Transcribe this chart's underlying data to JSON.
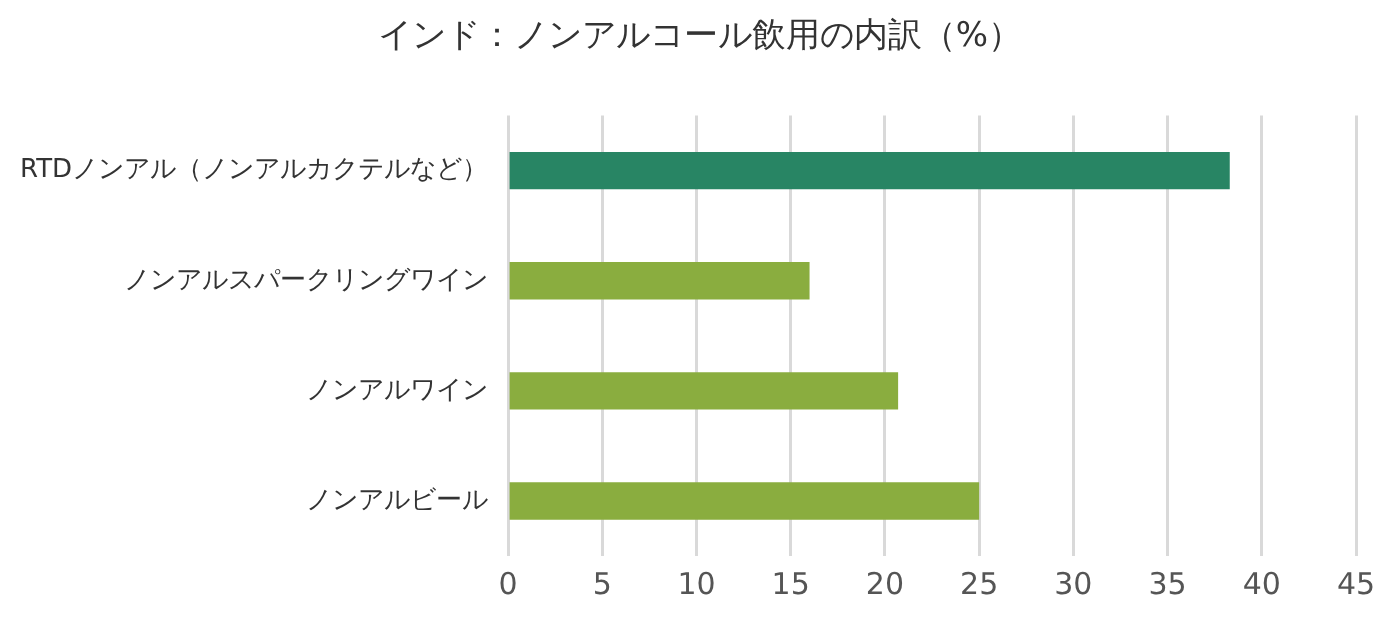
{
  "chart_data": {
    "type": "bar",
    "orientation": "horizontal",
    "title": "インド：ノンアルコール飲用の内訳（%）",
    "categories": [
      "RTDノンアル（ノンアルカクテルなど）",
      "ノンアルスパークリングワイン",
      "ノンアルワイン",
      "ノンアルビール"
    ],
    "values": [
      38.3,
      16.0,
      20.7,
      25.0
    ],
    "colors": [
      "#288564",
      "#8aad3f",
      "#8aad3f",
      "#8aad3f"
    ],
    "xlim": [
      0,
      45
    ],
    "xticks": [
      0,
      5,
      10,
      15,
      20,
      25,
      30,
      35,
      40,
      45
    ],
    "grid": "x",
    "legend": false
  }
}
